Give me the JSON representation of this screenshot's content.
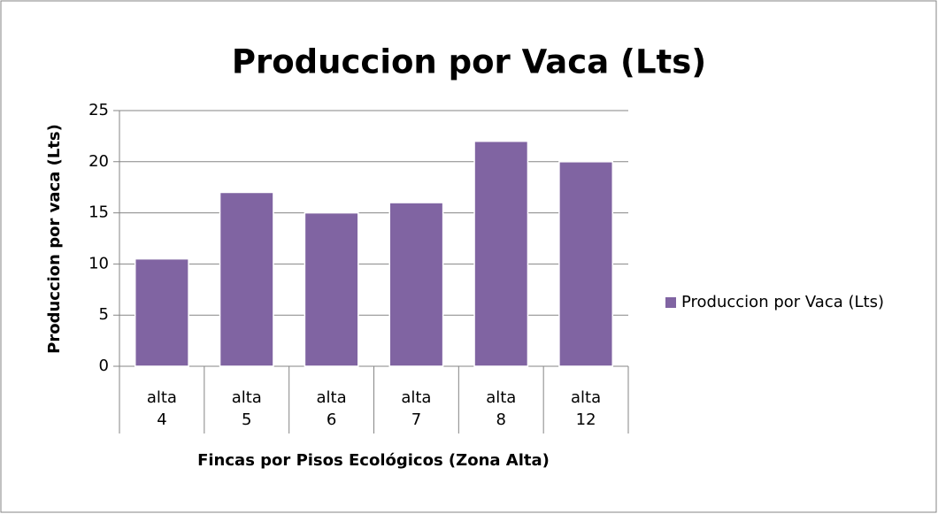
{
  "chart_data": {
    "type": "bar",
    "title": "Produccion por Vaca (Lts)",
    "x_label": "Fincas por Pisos Ecológicos (Zona Alta)",
    "y_label": "Produccion por vaca (Lts)",
    "categories": [
      [
        "alta",
        "4"
      ],
      [
        "alta",
        "5"
      ],
      [
        "alta",
        "6"
      ],
      [
        "alta",
        "7"
      ],
      [
        "alta",
        "8"
      ],
      [
        "alta",
        "12"
      ]
    ],
    "series": [
      {
        "name": "Produccion por Vaca (Lts)",
        "color": "#8064a2",
        "values": [
          10.5,
          17,
          15,
          16,
          22,
          20
        ]
      }
    ],
    "ylim": [
      0,
      25
    ],
    "yticks": [
      0,
      5,
      10,
      15,
      20,
      25
    ],
    "grid": true,
    "legend": "right"
  }
}
